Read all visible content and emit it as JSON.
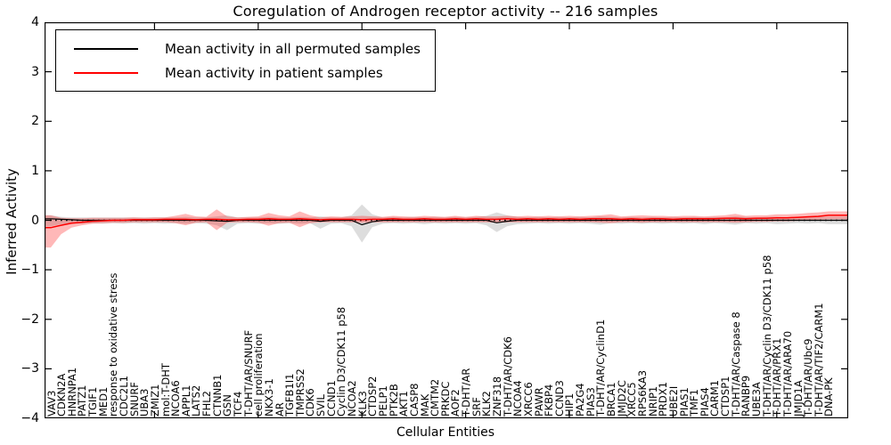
{
  "chart_data": {
    "type": "area",
    "title": "Coregulation of Androgen receptor activity -- 216 samples",
    "xlabel": "Cellular Entities",
    "ylabel": "Inferred Activity",
    "ylim": [
      -4,
      4
    ],
    "grid": false,
    "legend_position": "upper left",
    "zero_line": 0,
    "xticks_major_every": 10,
    "yticks": [
      4,
      3,
      2,
      1,
      0,
      -1,
      -2,
      -3,
      -4
    ],
    "ytick_labels": [
      "4",
      "3",
      "2",
      "1",
      "0",
      "−1",
      "−2",
      "−3",
      "−4"
    ],
    "categories": [
      "VAV3",
      "CDKN2A",
      "HNRNPA1",
      "PATZ1",
      "TGIF1",
      "MED1",
      "response to oxidative stress",
      "CDC2L1",
      "SNURF",
      "UBA3",
      "ZMIZ1",
      "mol:T-DHT",
      "NCOA6",
      "APPL1",
      "LATS2",
      "FHL2",
      "CTNNB1",
      "GSN",
      "TCF4",
      "T-DHT/AR/SNURF",
      "cell proliferation",
      "NKX3-1",
      "AR",
      "TGFB1I1",
      "TMPRSS2",
      "CDK6",
      "SVIL",
      "CCND1",
      "Cyclin D3/CDK11 p58",
      "NCOA2",
      "KLK3",
      "CTDSP2",
      "PELP1",
      "PTK2B",
      "AKT1",
      "CASP8",
      "MAK",
      "CMTM2",
      "PRKDC",
      "AOF2",
      "T-DHT/AR",
      "SRF",
      "KLK2",
      "ZNF318",
      "T-DHT/AR/CDK6",
      "NCOA4",
      "XRCC6",
      "PAWR",
      "FKBP4",
      "CCND3",
      "HIP1",
      "PA2G4",
      "PIAS3",
      "T-DHT/AR/CyclinD1",
      "BRCA1",
      "JMJD2C",
      "XRCC5",
      "RPS6KA3",
      "NRIP1",
      "PRDX1",
      "UBE2I",
      "PIAS1",
      "TMF1",
      "PIAS4",
      "CARM1",
      "CTDSP1",
      "T-DHT/AR/Caspase 8",
      "RANBP9",
      "UBE3A",
      "T-DHT/AR/Cyclin D3/CDK11 p58",
      "T-DHT/AR/PRX1",
      "T-DHT/AR/ARA70",
      "JMJD1A",
      "T-DHT/AR/Ubc9",
      "T-DHT/AR/TIF2/CARM1",
      "DNA-PK"
    ],
    "series": [
      {
        "name": "Mean activity in all permuted samples",
        "color": "#000000",
        "band_color": "rgba(100,100,100,0.22)",
        "mean": [
          0.03,
          0.02,
          0.01,
          0,
          0,
          0,
          0,
          0,
          0,
          0,
          0,
          0,
          0,
          0,
          0,
          0,
          -0.01,
          -0.02,
          0,
          0,
          0,
          0,
          0,
          0,
          0,
          0,
          -0.02,
          0,
          0,
          0,
          -0.09,
          -0.03,
          0,
          0,
          0,
          0,
          0,
          0,
          0,
          0,
          0,
          0,
          0,
          -0.05,
          -0.02,
          0,
          0,
          0,
          0,
          0,
          0,
          0,
          0,
          0,
          0,
          0,
          0,
          0,
          0,
          0,
          0,
          0,
          0,
          0,
          0,
          0,
          0,
          0,
          0,
          0,
          0,
          0,
          0,
          0,
          0,
          0
        ],
        "upper": [
          0.1,
          0.07,
          0.06,
          0.06,
          0.06,
          0.06,
          0.06,
          0.06,
          0.06,
          0.06,
          0.06,
          0.06,
          0.06,
          0.07,
          0.06,
          0.06,
          0.08,
          0.1,
          0.06,
          0.06,
          0.06,
          0.07,
          0.06,
          0.06,
          0.07,
          0.06,
          0.08,
          0.06,
          0.06,
          0.1,
          0.32,
          0.12,
          0.06,
          0.07,
          0.06,
          0.07,
          0.06,
          0.07,
          0.06,
          0.07,
          0.06,
          0.07,
          0.09,
          0.16,
          0.1,
          0.07,
          0.06,
          0.07,
          0.06,
          0.07,
          0.06,
          0.07,
          0.06,
          0.08,
          0.07,
          0.06,
          0.07,
          0.06,
          0.07,
          0.06,
          0.07,
          0.06,
          0.07,
          0.06,
          0.07,
          0.06,
          0.08,
          0.07,
          0.06,
          0.07,
          0.07,
          0.06,
          0.07,
          0.06,
          0.07,
          0.07
        ],
        "lower": [
          -0.12,
          -0.08,
          -0.07,
          -0.07,
          -0.06,
          -0.07,
          -0.06,
          -0.07,
          -0.06,
          -0.07,
          -0.06,
          -0.07,
          -0.06,
          -0.07,
          -0.06,
          -0.07,
          -0.1,
          -0.2,
          -0.07,
          -0.06,
          -0.07,
          -0.06,
          -0.07,
          -0.06,
          -0.07,
          -0.06,
          -0.17,
          -0.07,
          -0.06,
          -0.12,
          -0.45,
          -0.14,
          -0.07,
          -0.06,
          -0.07,
          -0.06,
          -0.08,
          -0.06,
          -0.07,
          -0.06,
          -0.07,
          -0.06,
          -0.1,
          -0.24,
          -0.12,
          -0.08,
          -0.07,
          -0.06,
          -0.07,
          -0.06,
          -0.07,
          -0.06,
          -0.07,
          -0.09,
          -0.06,
          -0.07,
          -0.06,
          -0.07,
          -0.06,
          -0.07,
          -0.06,
          -0.07,
          -0.06,
          -0.08,
          -0.06,
          -0.07,
          -0.09,
          -0.06,
          -0.07,
          -0.06,
          -0.08,
          -0.07,
          -0.06,
          -0.07,
          -0.06,
          -0.08
        ]
      },
      {
        "name": "Mean activity in patient samples",
        "color": "#ff0000",
        "band_color": "rgba(255,0,0,0.28)",
        "mean": [
          -0.15,
          -0.1,
          -0.06,
          -0.04,
          -0.02,
          -0.01,
          0,
          0,
          0.01,
          0.01,
          0.01,
          0.02,
          0.02,
          0.02,
          0.01,
          0.02,
          0.02,
          0.01,
          0.01,
          0.02,
          0.02,
          0.03,
          0.02,
          0.02,
          0.03,
          0.02,
          0.01,
          0.02,
          0.02,
          0.02,
          0.01,
          0.02,
          0.02,
          0.03,
          0.02,
          0.02,
          0.03,
          0.02,
          0.02,
          0.03,
          0.02,
          0.03,
          0.02,
          0.02,
          0.03,
          0.02,
          0.03,
          0.02,
          0.03,
          0.02,
          0.03,
          0.02,
          0.03,
          0.03,
          0.03,
          0.02,
          0.03,
          0.02,
          0.03,
          0.03,
          0.02,
          0.03,
          0.03,
          0.03,
          0.03,
          0.04,
          0.04,
          0.03,
          0.04,
          0.04,
          0.05,
          0.05,
          0.06,
          0.07,
          0.08,
          0.1
        ],
        "upper": [
          0.1,
          0.05,
          0.04,
          0.04,
          0.05,
          0.05,
          0.05,
          0.05,
          0.06,
          0.05,
          0.06,
          0.06,
          0.09,
          0.13,
          0.08,
          0.07,
          0.22,
          0.08,
          0.06,
          0.07,
          0.08,
          0.15,
          0.1,
          0.08,
          0.18,
          0.1,
          0.06,
          0.08,
          0.07,
          0.08,
          0.09,
          0.08,
          0.07,
          0.09,
          0.08,
          0.07,
          0.09,
          0.08,
          0.07,
          0.09,
          0.07,
          0.09,
          0.08,
          0.08,
          0.09,
          0.08,
          0.09,
          0.08,
          0.09,
          0.08,
          0.09,
          0.08,
          0.09,
          0.1,
          0.12,
          0.08,
          0.09,
          0.1,
          0.09,
          0.09,
          0.08,
          0.09,
          0.09,
          0.08,
          0.09,
          0.1,
          0.13,
          0.09,
          0.1,
          0.1,
          0.12,
          0.12,
          0.13,
          0.15,
          0.16,
          0.18
        ],
        "lower": [
          -0.55,
          -0.28,
          -0.15,
          -0.1,
          -0.07,
          -0.06,
          -0.05,
          -0.05,
          -0.04,
          -0.04,
          -0.04,
          -0.04,
          -0.06,
          -0.1,
          -0.05,
          -0.04,
          -0.2,
          -0.05,
          -0.04,
          -0.04,
          -0.05,
          -0.11,
          -0.06,
          -0.05,
          -0.14,
          -0.06,
          -0.04,
          -0.04,
          -0.04,
          -0.04,
          -0.05,
          -0.04,
          -0.04,
          -0.04,
          -0.04,
          -0.04,
          -0.04,
          -0.04,
          -0.04,
          -0.04,
          -0.04,
          -0.04,
          -0.04,
          -0.05,
          -0.04,
          -0.04,
          -0.04,
          -0.04,
          -0.04,
          -0.04,
          -0.04,
          -0.04,
          -0.04,
          -0.05,
          -0.06,
          -0.04,
          -0.04,
          -0.05,
          -0.04,
          -0.04,
          -0.04,
          -0.04,
          -0.04,
          -0.04,
          -0.04,
          -0.04,
          -0.05,
          -0.04,
          -0.03,
          -0.03,
          -0.02,
          -0.02,
          -0.01,
          0.0,
          0.01,
          0.02
        ]
      }
    ]
  }
}
